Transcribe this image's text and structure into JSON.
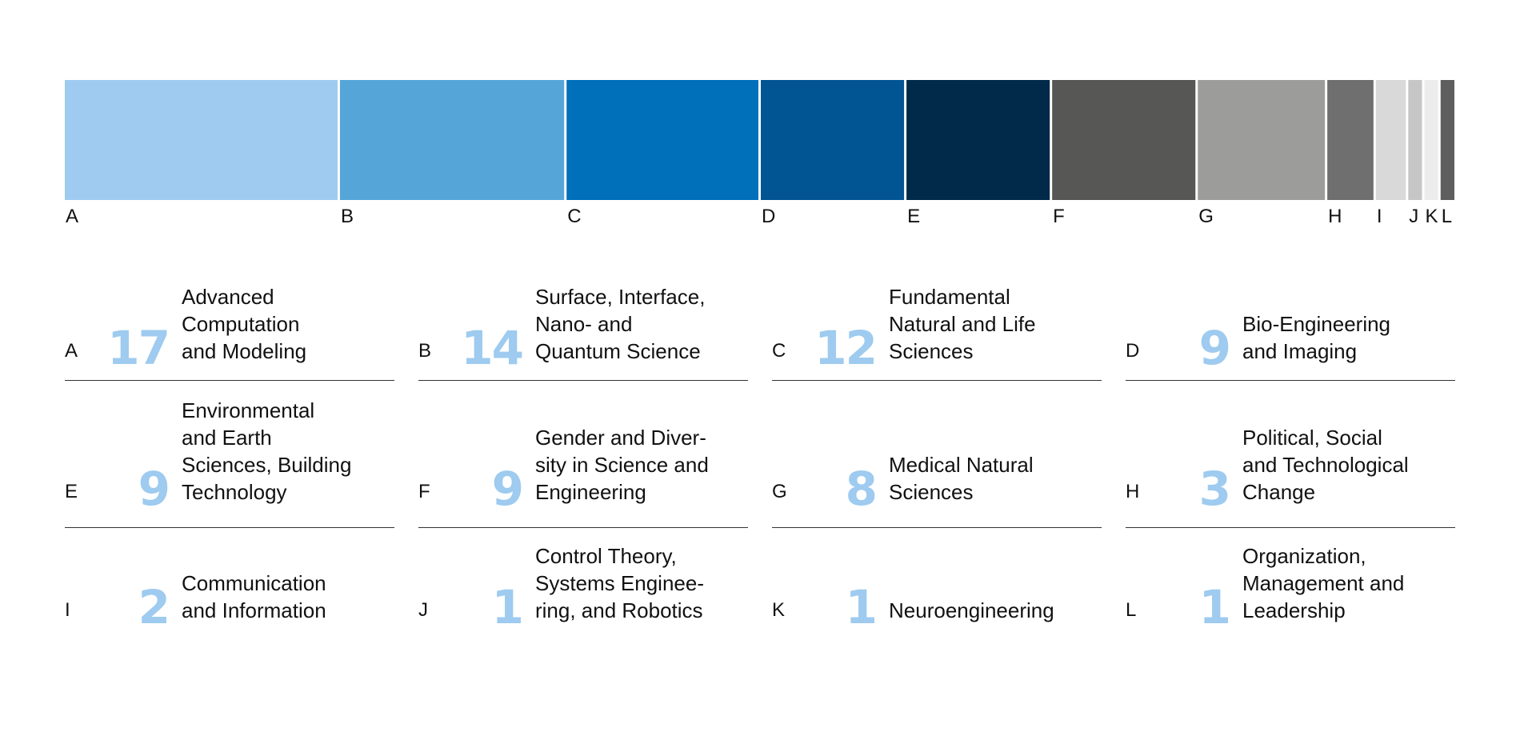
{
  "chart_data": {
    "type": "bar",
    "orientation": "horizontal-stacked",
    "categories": [
      "A",
      "B",
      "C",
      "D",
      "E",
      "F",
      "G",
      "H",
      "I",
      "J",
      "K",
      "L"
    ],
    "values": [
      17,
      14,
      12,
      9,
      9,
      9,
      8,
      3,
      2,
      1,
      1,
      1
    ],
    "colors": [
      "#9ecbef",
      "#55a5d8",
      "#0070bb",
      "#015592",
      "#012949",
      "#575755",
      "#9c9c9b",
      "#6f6f6f",
      "#d9d9d9",
      "#c6c6c6",
      "#ececec",
      "#5e5e5e"
    ],
    "items": [
      {
        "letter": "A",
        "count": "17",
        "label": "Advanced\nComputation\nand Modeling"
      },
      {
        "letter": "B",
        "count": "14",
        "label": "Surface, Interface,\nNano- and\nQuantum Science"
      },
      {
        "letter": "C",
        "count": "12",
        "label": "Fundamental\nNatural and Life\nSciences"
      },
      {
        "letter": "D",
        "count": "9",
        "label": "Bio-Engineering\nand Imaging"
      },
      {
        "letter": "E",
        "count": "9",
        "label": "Environmental\nand Earth\nSciences, Building\nTechnology"
      },
      {
        "letter": "F",
        "count": "9",
        "label": "Gender and Diver-\nsity in Science and\nEngineering"
      },
      {
        "letter": "G",
        "count": "8",
        "label": "Medical Natural\nSciences"
      },
      {
        "letter": "H",
        "count": "3",
        "label": "Political, Social\nand Technological\nChange"
      },
      {
        "letter": "I",
        "count": "2",
        "label": "Communication\nand Information"
      },
      {
        "letter": "J",
        "count": "1",
        "label": "Control Theory,\nSystems Enginee-\nring, and Robotics"
      },
      {
        "letter": "K",
        "count": "1",
        "label": "Neuroengineering"
      },
      {
        "letter": "L",
        "count": "1",
        "label": "Organization,\nManagement and\nLeadership"
      }
    ]
  }
}
